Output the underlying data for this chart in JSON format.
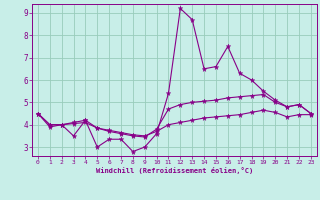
{
  "xlabel": "Windchill (Refroidissement éolien,°C)",
  "bg_color": "#c8eee8",
  "line_color": "#880088",
  "grid_color": "#99ccbb",
  "xlim": [
    -0.5,
    23.5
  ],
  "ylim": [
    2.6,
    9.4
  ],
  "xticks": [
    0,
    1,
    2,
    3,
    4,
    5,
    6,
    7,
    8,
    9,
    10,
    11,
    12,
    13,
    14,
    15,
    16,
    17,
    18,
    19,
    20,
    21,
    22,
    23
  ],
  "yticks": [
    3,
    4,
    5,
    6,
    7,
    8,
    9
  ],
  "line1_y": [
    4.5,
    3.9,
    4.0,
    3.5,
    4.2,
    3.0,
    3.35,
    3.35,
    2.8,
    3.0,
    3.6,
    5.4,
    9.2,
    8.7,
    6.5,
    6.6,
    7.5,
    6.3,
    6.0,
    5.5,
    5.1,
    4.8,
    4.9,
    4.5
  ],
  "line2_y": [
    4.5,
    4.0,
    4.0,
    4.1,
    4.2,
    3.85,
    3.7,
    3.6,
    3.5,
    3.45,
    3.8,
    4.7,
    4.9,
    5.0,
    5.05,
    5.1,
    5.2,
    5.25,
    5.3,
    5.35,
    5.0,
    4.8,
    4.9,
    4.5
  ],
  "line3_y": [
    4.5,
    4.0,
    4.0,
    4.05,
    4.1,
    3.85,
    3.75,
    3.65,
    3.55,
    3.5,
    3.7,
    4.0,
    4.1,
    4.2,
    4.3,
    4.35,
    4.4,
    4.45,
    4.55,
    4.65,
    4.55,
    4.35,
    4.45,
    4.45
  ]
}
